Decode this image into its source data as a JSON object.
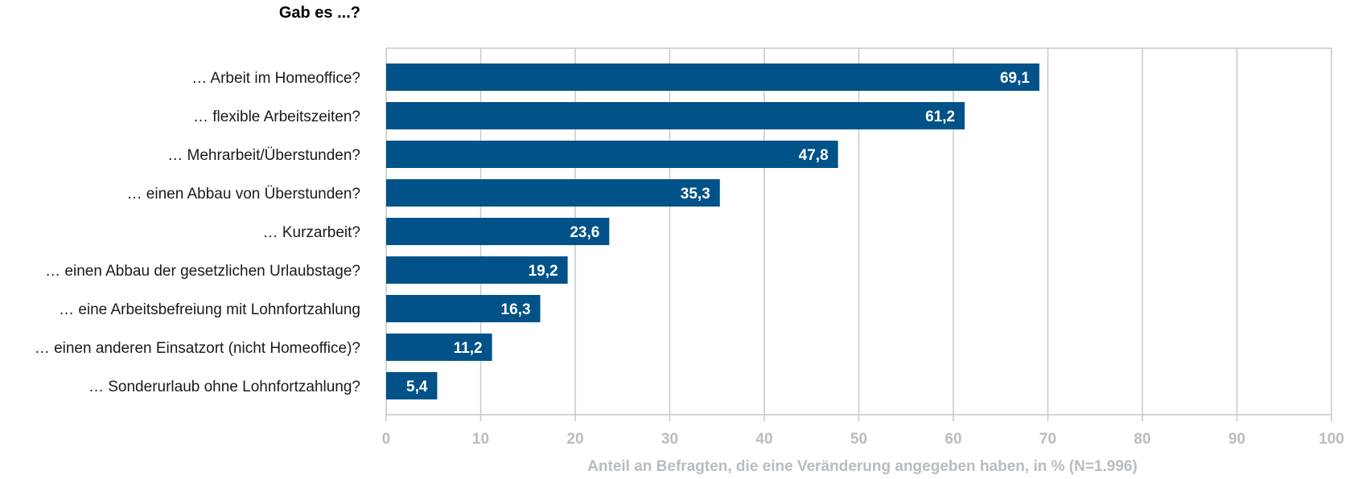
{
  "chart_data": {
    "type": "bar",
    "orientation": "horizontal",
    "title": "Gab es ...?",
    "xlabel": "Anteil an Befragten, die eine Veränderung angegeben haben, in % (N=1.996)",
    "ylabel": "",
    "xlim": [
      0,
      100
    ],
    "xticks": [
      "0",
      "10",
      "20",
      "30",
      "40",
      "50",
      "60",
      "70",
      "80",
      "90",
      "100"
    ],
    "grid": true,
    "categories": [
      "… Arbeit im Homeoffice?",
      "… flexible Arbeitszeiten?",
      "… Mehrarbeit/Überstunden?",
      "… einen Abbau von Überstunden?",
      "… Kurzarbeit?",
      "… einen Abbau der gesetzlichen Urlaubstage?",
      "… eine Arbeitsbefreiung mit Lohnfortzahlung",
      "… einen anderen Einsatzort (nicht Homeoffice)?",
      "… Sonderurlaub ohne Lohnfortzahlung?"
    ],
    "values": [
      69.1,
      61.2,
      47.8,
      35.3,
      23.6,
      19.2,
      16.3,
      11.2,
      5.4
    ],
    "value_labels": [
      "69,1",
      "61,2",
      "47,8",
      "35,3",
      "23,6",
      "19,2",
      "16,3",
      "11,2",
      "5,4"
    ],
    "colors": {
      "bar": "#005288",
      "grid": "#c4c9cc",
      "axis": "#c4c9cc",
      "tick_text": "#b7bdc1"
    }
  }
}
